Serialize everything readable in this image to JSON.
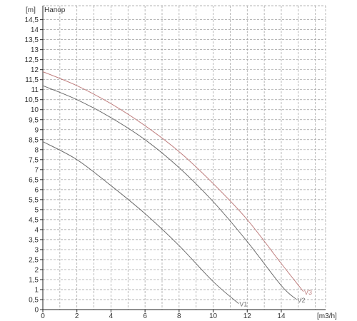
{
  "chart_data": {
    "type": "line",
    "title": "Напор",
    "ylabel": "[m]",
    "xlabel": "[m3/h]",
    "xlim": [
      0,
      16.6
    ],
    "ylim": [
      0,
      15.2
    ],
    "grid": true,
    "x_ticks": [
      0,
      2,
      4,
      6,
      8,
      10,
      12,
      14
    ],
    "x_tick_labels": [
      "0",
      "2",
      "4",
      "6",
      "8",
      "10",
      "12",
      "14"
    ],
    "y_ticks": [
      0,
      0.5,
      1,
      1.5,
      2,
      2.5,
      3,
      3.5,
      4,
      4.5,
      5,
      5.5,
      6,
      6.5,
      7,
      7.5,
      8,
      8.5,
      9,
      9.5,
      10,
      10.5,
      11,
      11.5,
      12,
      12.5,
      13,
      13.5,
      14,
      14.5
    ],
    "y_tick_labels": [
      "0",
      "0,5",
      "1",
      "1,5",
      "2",
      "2,5",
      "3",
      "3,5",
      "4",
      "4,5",
      "5",
      "5,5",
      "6",
      "6,5",
      "7",
      "7,5",
      "8",
      "8,5",
      "9",
      "9,5",
      "10",
      "10,5",
      "11",
      "11,5",
      "12",
      "12,5",
      "13",
      "13,5",
      "14",
      "14,5"
    ],
    "series": [
      {
        "name": "V1",
        "color": "#6e6e6e",
        "x": [
          0,
          2,
          4,
          6,
          8,
          10,
          11.5
        ],
        "y": [
          8.4,
          7.5,
          6.2,
          4.8,
          3.2,
          1.4,
          0.3
        ]
      },
      {
        "name": "V2",
        "color": "#6e6e6e",
        "x": [
          0,
          2,
          4,
          6,
          8,
          10,
          12,
          14,
          14.9
        ],
        "y": [
          11.2,
          10.5,
          9.6,
          8.5,
          7.1,
          5.4,
          3.4,
          1.2,
          0.5
        ]
      },
      {
        "name": "V3",
        "color": "#c08080",
        "x": [
          0,
          2,
          4,
          6,
          8,
          10,
          12,
          14,
          15.3
        ],
        "y": [
          11.9,
          11.2,
          10.3,
          9.2,
          7.9,
          6.3,
          4.5,
          2.3,
          0.9
        ]
      }
    ]
  }
}
